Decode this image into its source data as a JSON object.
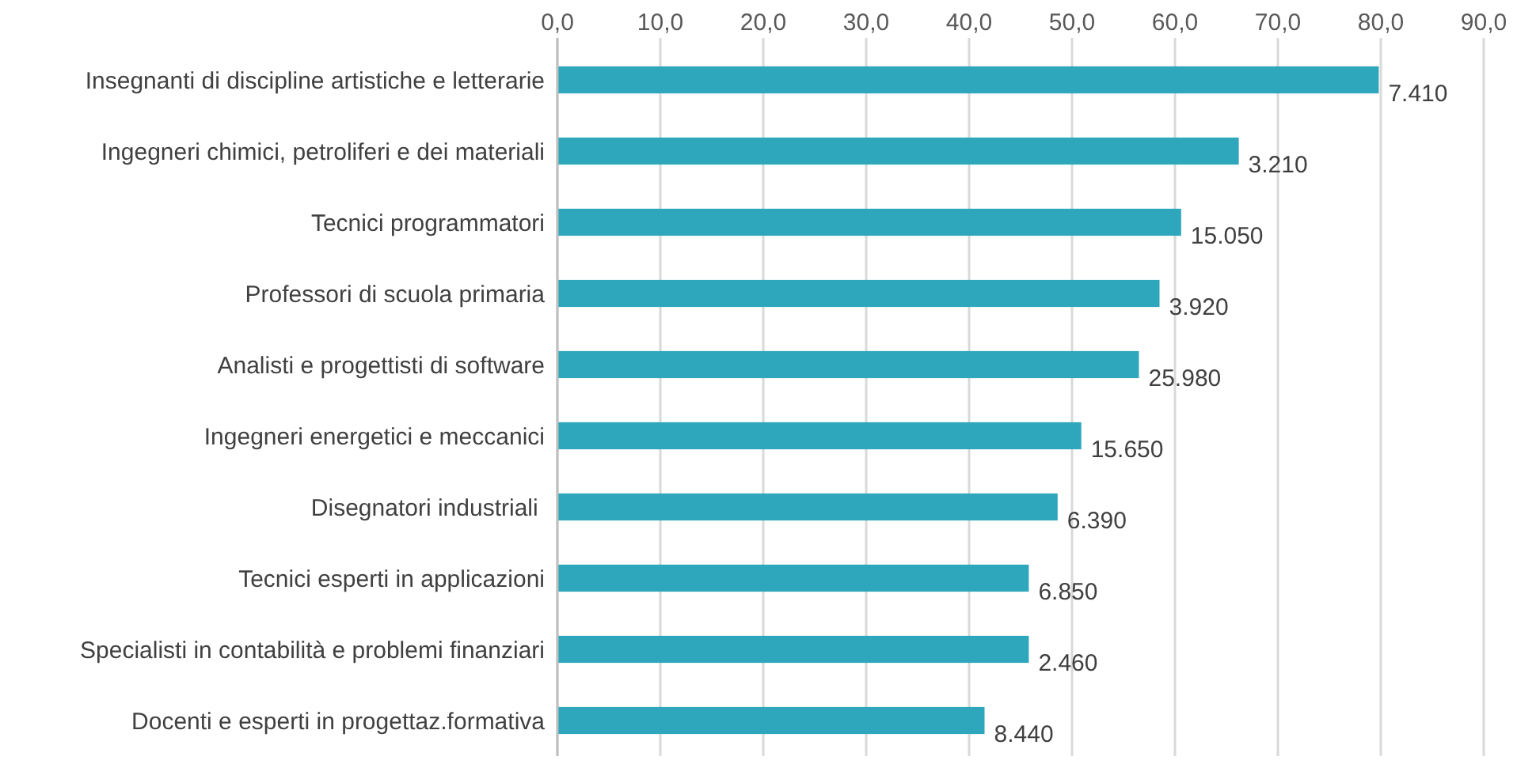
{
  "chart_data": {
    "type": "bar",
    "orientation": "horizontal",
    "categories": [
      "Insegnanti di discipline artistiche e letterarie",
      "Ingegneri chimici, petroliferi e dei materiali",
      "Tecnici programmatori",
      "Professori di scuola primaria",
      "Analisti e progettisti di software",
      "Ingegneri energetici e meccanici",
      "Disegnatori industriali ",
      "Tecnici esperti in applicazioni",
      "Specialisti in contabilità e problemi finanziari",
      "Docenti e esperti in progettaz.formativa"
    ],
    "values": [
      79.8,
      66.2,
      60.6,
      58.5,
      56.5,
      50.9,
      48.6,
      45.8,
      45.8,
      41.5
    ],
    "annotations": [
      {
        "text": "7.410",
        "x": 79.8,
        "y": "Insegnanti di discipline artistiche e letterarie"
      },
      {
        "text": "3.210",
        "x": 66.2,
        "y": "Ingegneri chimici, petroliferi e dei materiali"
      },
      {
        "text": "15.050",
        "x": 60.6,
        "y": "Tecnici programmatori"
      },
      {
        "text": "3.920",
        "x": 58.5,
        "y": "Professori di scuola primaria"
      },
      {
        "text": "25.980",
        "x": 56.5,
        "y": "Analisti e progettisti di software"
      },
      {
        "text": "15.650",
        "x": 50.9,
        "y": "Ingegneri energetici e meccanici"
      },
      {
        "text": "6.390",
        "x": 48.6,
        "y": "Disegnatori industriali "
      },
      {
        "text": "6.850",
        "x": 45.8,
        "y": "Tecnici esperti in applicazioni"
      },
      {
        "text": "2.460",
        "x": 45.8,
        "y": "Specialisti in contabilità e problemi finanziari"
      },
      {
        "text": "8.440",
        "x": 41.5,
        "y": "Docenti e esperti in progettaz.formativa"
      }
    ],
    "color": "#2ea7bc",
    "xlim": [
      0,
      90
    ],
    "xticks": [
      {
        "value": 0,
        "label": "0,0"
      },
      {
        "value": 10,
        "label": "10,0"
      },
      {
        "value": 20,
        "label": "20,0"
      },
      {
        "value": 30,
        "label": "30,0"
      },
      {
        "value": 40,
        "label": "40,0"
      },
      {
        "value": 50,
        "label": "50,0"
      },
      {
        "value": 60,
        "label": "60,0"
      },
      {
        "value": 70,
        "label": "70,0"
      },
      {
        "value": 80,
        "label": "80,0"
      },
      {
        "value": 90,
        "label": "90,0"
      }
    ],
    "grid": "x"
  }
}
